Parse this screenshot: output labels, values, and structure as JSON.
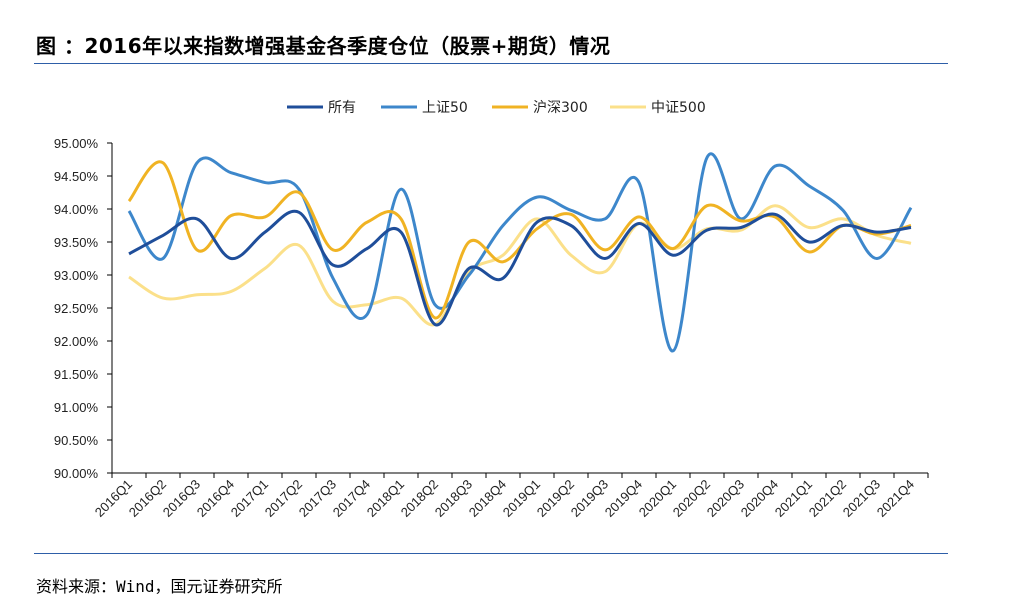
{
  "page": {
    "title": "图 ：2016年以来指数增强基金各季度仓位（股票+期货）情况",
    "source": "资料来源：Wind，国元证券研究所"
  },
  "chart_data": {
    "type": "line",
    "categories": [
      "2016Q1",
      "2016Q2",
      "2016Q3",
      "2016Q4",
      "2017Q1",
      "2017Q2",
      "2017Q3",
      "2017Q4",
      "2018Q1",
      "2018Q2",
      "2018Q3",
      "2018Q4",
      "2019Q1",
      "2019Q2",
      "2019Q3",
      "2019Q4",
      "2020Q1",
      "2020Q2",
      "2020Q3",
      "2020Q4",
      "2021Q1",
      "2021Q2",
      "2021Q3",
      "2021Q4"
    ],
    "ylim": [
      90.0,
      95.0
    ],
    "yticks": [
      "90.00%",
      "90.50%",
      "91.00%",
      "91.50%",
      "92.00%",
      "92.50%",
      "93.00%",
      "93.50%",
      "94.00%",
      "94.50%",
      "95.00%"
    ],
    "ytick_values": [
      90.0,
      90.5,
      91.0,
      91.5,
      92.0,
      92.5,
      93.0,
      93.5,
      94.0,
      94.5,
      95.0
    ],
    "legend_position": "top",
    "series": [
      {
        "name": "所有",
        "color": "#1f4e9a",
        "values": [
          93.32,
          93.6,
          93.85,
          93.25,
          93.65,
          93.95,
          93.15,
          93.4,
          93.65,
          92.25,
          93.1,
          92.95,
          93.8,
          93.75,
          93.25,
          93.78,
          93.3,
          93.68,
          93.72,
          93.92,
          93.5,
          93.75,
          93.65,
          93.72
        ]
      },
      {
        "name": "上证50",
        "color": "#3d87cb",
        "values": [
          93.97,
          93.25,
          94.7,
          94.55,
          94.4,
          94.3,
          92.95,
          92.4,
          94.3,
          92.55,
          93.0,
          93.75,
          94.18,
          93.98,
          93.85,
          94.4,
          91.85,
          94.78,
          93.85,
          94.65,
          94.35,
          93.98,
          93.25,
          94.02
        ]
      },
      {
        "name": "沪深300",
        "color": "#f0b323",
        "values": [
          94.12,
          94.7,
          93.38,
          93.9,
          93.88,
          94.25,
          93.38,
          93.8,
          93.85,
          92.35,
          93.5,
          93.2,
          93.7,
          93.92,
          93.38,
          93.88,
          93.4,
          94.05,
          93.82,
          93.88,
          93.35,
          93.75,
          93.62,
          93.75
        ]
      },
      {
        "name": "中证500",
        "color": "#fbe08a",
        "values": [
          92.97,
          92.65,
          92.7,
          92.75,
          93.1,
          93.45,
          92.6,
          92.55,
          92.65,
          92.25,
          93.05,
          93.3,
          93.85,
          93.3,
          93.05,
          93.78,
          93.4,
          93.7,
          93.68,
          94.05,
          93.72,
          93.85,
          93.6,
          93.48
        ]
      }
    ]
  }
}
